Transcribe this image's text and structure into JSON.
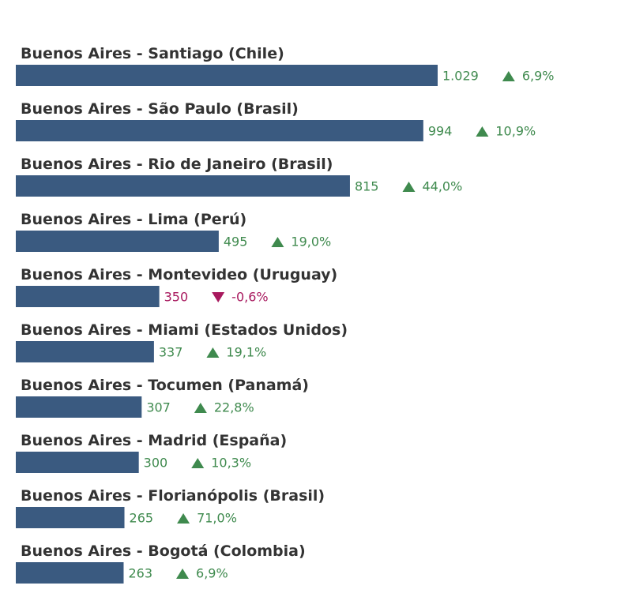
{
  "chart_data": {
    "type": "bar",
    "orientation": "horizontal",
    "categories": [
      "Buenos Aires - Santiago (Chile)",
      "Buenos Aires - São Paulo (Brasil)",
      "Buenos Aires - Rio de Janeiro (Brasil)",
      "Buenos Aires - Lima (Perú)",
      "Buenos Aires - Montevideo (Uruguay)",
      "Buenos Aires - Miami (Estados Unidos)",
      "Buenos Aires - Tocumen (Panamá)",
      "Buenos Aires - Madrid (España)",
      "Buenos Aires - Florianópolis (Brasil)",
      "Buenos Aires - Bogotá (Colombia)"
    ],
    "values": [
      1029,
      994,
      815,
      495,
      350,
      337,
      307,
      300,
      265,
      263
    ],
    "value_labels": [
      "1.029",
      "994",
      "815",
      "495",
      "350",
      "337",
      "307",
      "300",
      "265",
      "263"
    ],
    "changes": [
      6.9,
      10.9,
      44.0,
      19.0,
      -0.6,
      19.1,
      22.8,
      10.3,
      71.0,
      6.9
    ],
    "change_labels": [
      "6,9%",
      "10,9%",
      "44,0%",
      "19,0%",
      "-0,6%",
      "19,1%",
      "22,8%",
      "10,3%",
      "71,0%",
      "6,9%"
    ],
    "color": "#3a5a80",
    "positive_color": "#3f8a4e",
    "negative_color": "#a8195e"
  }
}
